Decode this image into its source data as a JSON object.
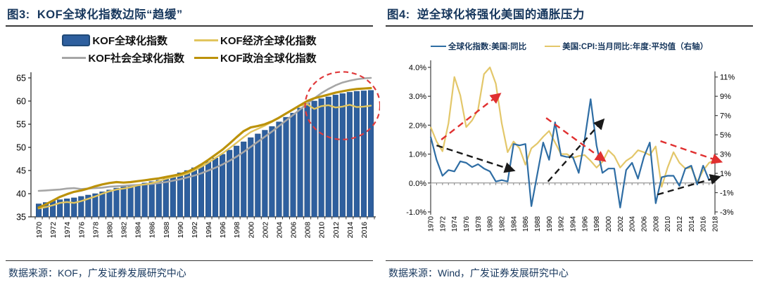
{
  "panels": {
    "fig3": {
      "title": "图3:  KOF全球化指数边际“趋缓”",
      "source": "数据来源：KOF，广发证券发展研究中心"
    },
    "fig4": {
      "title": "图4:  逆全球化将强化美国的通胀压力",
      "source": "数据来源：Wind，广发证券发展研究中心"
    }
  },
  "colors": {
    "title_navy": "#17375D",
    "bar_blue": "#2E5F9E",
    "bar_border": "#1F4977",
    "economic_yellow": "#E2C55E",
    "social_gray": "#A6A6A6",
    "political_gold": "#BC920A",
    "us_index_blue": "#2E6DA4",
    "cpi_yellow": "#E3C76A",
    "annotation_red": "#E03A3C",
    "annotation_black": "#1a1a1a"
  },
  "chart_data": [
    {
      "type": "bar+line",
      "categories": [
        1970,
        1971,
        1972,
        1973,
        1974,
        1975,
        1976,
        1977,
        1978,
        1979,
        1980,
        1981,
        1982,
        1983,
        1984,
        1985,
        1986,
        1987,
        1988,
        1989,
        1990,
        1991,
        1992,
        1993,
        1994,
        1995,
        1996,
        1997,
        1998,
        1999,
        2000,
        2001,
        2002,
        2003,
        2004,
        2005,
        2006,
        2007,
        2008,
        2009,
        2010,
        2011,
        2012,
        2013,
        2014,
        2015,
        2016,
        2017
      ],
      "series": [
        {
          "name": "KOF全球化指数",
          "kind": "bar",
          "color": "#2E5F9E",
          "border": "#1F4977",
          "values": [
            37.8,
            38.1,
            38.4,
            38.7,
            38.9,
            39.1,
            39.4,
            39.7,
            40.0,
            40.4,
            40.8,
            41.2,
            41.5,
            41.7,
            42.0,
            42.3,
            42.6,
            42.9,
            43.3,
            43.8,
            44.5,
            45.0,
            45.6,
            46.2,
            46.9,
            47.7,
            48.5,
            49.4,
            50.3,
            51.2,
            52.1,
            52.9,
            53.7,
            54.5,
            55.5,
            56.5,
            57.4,
            58.5,
            59.5,
            60.0,
            60.5,
            60.9,
            61.3,
            61.6,
            61.9,
            62.1,
            62.2,
            62.3
          ]
        },
        {
          "name": "KOF经济全球化指数",
          "kind": "line",
          "color": "#E2C55E",
          "values": [
            36.8,
            37.1,
            37.5,
            38.0,
            38.2,
            38.0,
            38.4,
            38.9,
            39.4,
            40.0,
            40.5,
            40.9,
            41.1,
            41.4,
            41.8,
            42.0,
            42.3,
            42.7,
            43.2,
            43.6,
            43.9,
            44.3,
            45.0,
            45.8,
            46.7,
            47.7,
            48.7,
            49.8,
            51.0,
            52.2,
            53.3,
            54.0,
            54.7,
            55.5,
            56.4,
            57.3,
            58.2,
            59.0,
            59.3,
            58.3,
            58.9,
            59.1,
            58.6,
            58.8,
            59.2,
            58.7,
            58.8,
            59.0
          ]
        },
        {
          "name": "KOF社会全球化指数",
          "kind": "line",
          "color": "#A6A6A6",
          "values": [
            40.6,
            40.7,
            40.8,
            40.9,
            41.1,
            41.2,
            41.0,
            41.1,
            41.2,
            41.3,
            41.5,
            41.6,
            41.7,
            41.8,
            41.9,
            42.0,
            42.1,
            42.3,
            42.5,
            42.8,
            43.1,
            43.5,
            43.9,
            44.4,
            45.0,
            45.6,
            46.3,
            47.1,
            48.0,
            49.0,
            50.1,
            51.2,
            52.3,
            53.4,
            54.6,
            55.8,
            57.0,
            58.2,
            59.4,
            60.6,
            61.7,
            62.6,
            63.4,
            64.0,
            64.4,
            64.7,
            64.9,
            65.0
          ]
        },
        {
          "name": "KOF政治全球化指数",
          "kind": "line",
          "color": "#BC920A",
          "values": [
            37.0,
            37.7,
            38.5,
            39.3,
            39.9,
            40.4,
            40.7,
            41.1,
            41.6,
            42.0,
            42.3,
            42.5,
            42.4,
            42.5,
            42.7,
            42.9,
            43.1,
            43.3,
            43.6,
            43.9,
            44.2,
            44.7,
            45.4,
            46.3,
            47.3,
            48.4,
            49.5,
            50.8,
            52.2,
            53.5,
            54.3,
            54.6,
            55.0,
            55.6,
            56.4,
            57.3,
            58.2,
            59.1,
            60.0,
            60.6,
            61.0,
            61.4,
            61.8,
            62.1,
            62.4,
            62.6,
            62.7,
            62.8
          ]
        }
      ],
      "ylim": [
        35,
        65
      ],
      "yticks": [
        35,
        40,
        45,
        50,
        55,
        60,
        65
      ],
      "xtick_step": 2,
      "grid": false,
      "legend_position": "top",
      "annotations": {
        "ellipse": {
          "center_year": 2013,
          "center_value": 59,
          "rx_years": 5.3,
          "ry_units": 7.3,
          "color": "#E03A3C",
          "style": "dashed"
        }
      }
    },
    {
      "type": "line",
      "x": [
        1970,
        1971,
        1972,
        1973,
        1974,
        1975,
        1976,
        1977,
        1978,
        1979,
        1980,
        1981,
        1982,
        1983,
        1984,
        1985,
        1986,
        1987,
        1988,
        1989,
        1990,
        1991,
        1992,
        1993,
        1994,
        1995,
        1996,
        1997,
        1998,
        1999,
        2000,
        2001,
        2002,
        2003,
        2004,
        2005,
        2006,
        2007,
        2008,
        2009,
        2010,
        2011,
        2012,
        2013,
        2014,
        2015,
        2016,
        2017,
        2018
      ],
      "series": [
        {
          "name": "全球化指数:美国:同比",
          "axis": "left",
          "color": "#2E6DA4",
          "values": [
            1.6,
            0.8,
            0.25,
            0.45,
            0.4,
            0.75,
            0.7,
            0.55,
            0.65,
            0.5,
            0.4,
            0.05,
            0.1,
            0.05,
            1.35,
            1.3,
            1.35,
            -0.8,
            0.3,
            1.4,
            0.8,
            2.1,
            0.95,
            0.9,
            0.9,
            0.35,
            1.5,
            2.9,
            1.3,
            0.35,
            0.5,
            0.5,
            -0.85,
            0.45,
            0.7,
            0.15,
            0.9,
            1.4,
            -0.7,
            0.2,
            0.25,
            0.25,
            -0.1,
            0.5,
            0.6,
            -0.05,
            0.6,
            0.1,
            0.25
          ]
        },
        {
          "name": "美国:CPI:当月同比:年度:平均值（右轴）",
          "axis": "right",
          "color": "#E3C76A",
          "values": [
            5.8,
            4.3,
            3.3,
            6.2,
            11.0,
            9.1,
            5.8,
            6.5,
            7.6,
            11.3,
            12.0,
            10.3,
            6.2,
            3.2,
            4.3,
            3.6,
            1.9,
            3.6,
            4.1,
            4.8,
            5.4,
            4.2,
            3.0,
            3.0,
            2.6,
            2.8,
            2.9,
            2.3,
            1.6,
            2.2,
            3.4,
            2.8,
            1.6,
            2.3,
            2.7,
            3.4,
            3.2,
            2.9,
            3.8,
            -0.4,
            1.6,
            3.2,
            2.1,
            1.5,
            1.6,
            0.1,
            1.3,
            2.1,
            2.4
          ]
        }
      ],
      "left_axis": {
        "min": -1,
        "max": 4,
        "ticks": [
          4,
          3,
          2,
          1,
          0,
          -1
        ],
        "tick_labels": [
          "4.0%",
          "3.0%",
          "2.0%",
          "1.0%",
          "0.0%",
          "-1.0%"
        ]
      },
      "right_axis": {
        "min": -3,
        "max": 11,
        "ticks": [
          11,
          9,
          7,
          5,
          3,
          1,
          -1,
          -3
        ],
        "tick_labels": [
          "11%",
          "9%",
          "7%",
          "5%",
          "3%",
          "1%",
          "-1%",
          "-3%"
        ]
      },
      "xtick_step": 2,
      "grid": false,
      "arrows": [
        {
          "color": "#E03030",
          "from": [
            1971.8,
            1.5
          ],
          "to": [
            1981.5,
            3.05
          ]
        },
        {
          "color": "#1a1a1a",
          "from": [
            1971.0,
            1.3
          ],
          "to": [
            1983.8,
            0.45
          ]
        },
        {
          "color": "#E03030",
          "from": [
            1989.5,
            2.25
          ],
          "to": [
            1999.2,
            0.8
          ]
        },
        {
          "color": "#1a1a1a",
          "from": [
            1989.8,
            0.05
          ],
          "to": [
            1999.0,
            2.15
          ]
        },
        {
          "color": "#E03030",
          "from": [
            2008.8,
            1.45
          ],
          "to": [
            2018.8,
            0.75
          ]
        },
        {
          "color": "#1a1a1a",
          "from": [
            2008.3,
            -0.4
          ],
          "to": [
            2018.5,
            0.2
          ]
        }
      ]
    }
  ]
}
